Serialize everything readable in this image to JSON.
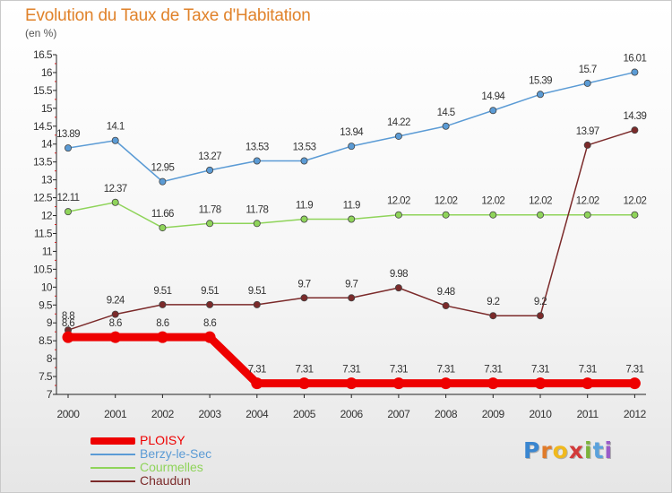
{
  "title": "Evolution du Taux de Taxe d'Habitation",
  "subtitle": "(en %)",
  "logo": {
    "letters": [
      "P",
      "r",
      "o",
      "x",
      "i",
      "t",
      "i"
    ],
    "colors": [
      "#3a86d0",
      "#e07b2a",
      "#f0b91e",
      "#d23a3a",
      "#7bb33a",
      "#5aa2dc",
      "#9a5bc8"
    ]
  },
  "chart_data": {
    "type": "line",
    "title": "Evolution du Taux de Taxe d'Habitation",
    "ylabel": "(en %)",
    "xlabel": "",
    "categories": [
      "2000",
      "2001",
      "2002",
      "2003",
      "2004",
      "2005",
      "2006",
      "2007",
      "2008",
      "2009",
      "2010",
      "2011",
      "2012"
    ],
    "ylim": [
      7,
      16.5
    ],
    "yticks": [
      "7",
      "7.5",
      "8",
      "8.5",
      "9",
      "9.5",
      "10",
      "10.5",
      "11",
      "11.5",
      "12",
      "12.5",
      "13",
      "13.5",
      "14",
      "14.5",
      "15",
      "15.5",
      "16",
      "16.5"
    ],
    "grid": false,
    "legend_position": "bottom-left",
    "series": [
      {
        "name": "PLOISY",
        "color": "#ee0000",
        "values": [
          8.6,
          8.6,
          8.6,
          8.6,
          7.31,
          7.31,
          7.31,
          7.31,
          7.31,
          7.31,
          7.31,
          7.31,
          7.31
        ],
        "labels": [
          "8.6",
          "8.6",
          "8.6",
          "8.6",
          "7.31",
          "7.31",
          "7.31",
          "7.31",
          "7.31",
          "7.31",
          "7.31",
          "7.31",
          "7.31"
        ]
      },
      {
        "name": "Berzy-le-Sec",
        "color": "#5b9bd5",
        "values": [
          13.89,
          14.1,
          12.95,
          13.27,
          13.53,
          13.53,
          13.94,
          14.22,
          14.5,
          14.94,
          15.39,
          15.7,
          16.01
        ],
        "labels": [
          "13.89",
          "14.1",
          "12.95",
          "13.27",
          "13.53",
          "13.53",
          "13.94",
          "14.22",
          "14.5",
          "14.94",
          "15.39",
          "15.7",
          "16.01"
        ]
      },
      {
        "name": "Courmelles",
        "color": "#8fd45a",
        "values": [
          12.11,
          12.37,
          11.66,
          11.78,
          11.78,
          11.9,
          11.9,
          12.02,
          12.02,
          12.02,
          12.02,
          12.02,
          12.02
        ],
        "labels": [
          "12.11",
          "12.37",
          "11.66",
          "11.78",
          "11.78",
          "11.9",
          "11.9",
          "12.02",
          "12.02",
          "12.02",
          "12.02",
          "12.02",
          "12.02"
        ]
      },
      {
        "name": "Chaudun",
        "color": "#7b2a2a",
        "values": [
          8.8,
          9.24,
          9.51,
          9.51,
          9.51,
          9.7,
          9.7,
          9.98,
          9.48,
          9.2,
          9.2,
          13.97,
          14.39
        ],
        "labels": [
          "8.8",
          "9.24",
          "9.51",
          "9.51",
          "9.51",
          "9.7",
          "9.7",
          "9.98",
          "9.48",
          "9.2",
          "9.2",
          "13.97",
          "14.39"
        ]
      }
    ]
  }
}
